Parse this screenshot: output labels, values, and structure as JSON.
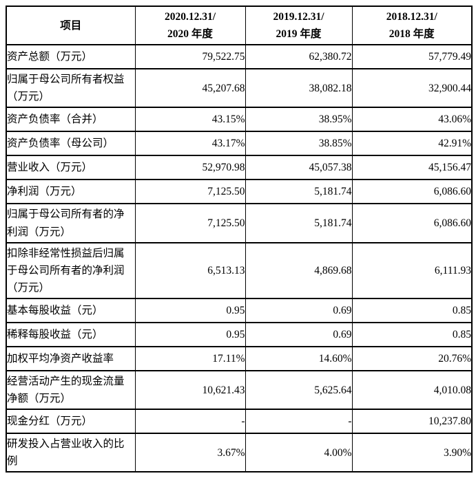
{
  "table": {
    "header": {
      "item_label": "项目",
      "periods": [
        {
          "line1": "2020.12.31/",
          "line2": "2020 年度"
        },
        {
          "line1": "2019.12.31/",
          "line2": "2019 年度"
        },
        {
          "line1": "2018.12.31/",
          "line2": "2018 年度"
        }
      ]
    },
    "rows": [
      {
        "label": "资产总额（万元）",
        "values": [
          "79,522.75",
          "62,380.72",
          "57,779.49"
        ]
      },
      {
        "label": "归属于母公司所有者权益（万元）",
        "values": [
          "45,207.68",
          "38,082.18",
          "32,900.44"
        ]
      },
      {
        "label": "资产负债率（合并）",
        "values": [
          "43.15%",
          "38.95%",
          "43.06%"
        ]
      },
      {
        "label": "资产负债率（母公司）",
        "values": [
          "43.17%",
          "38.85%",
          "42.91%"
        ]
      },
      {
        "label": "营业收入（万元）",
        "values": [
          "52,970.98",
          "45,057.38",
          "45,156.47"
        ]
      },
      {
        "label": "净利润（万元）",
        "values": [
          "7,125.50",
          "5,181.74",
          "6,086.60"
        ]
      },
      {
        "label": "归属于母公司所有者的净利润（万元）",
        "values": [
          "7,125.50",
          "5,181.74",
          "6,086.60"
        ]
      },
      {
        "label": "扣除非经常性损益后归属于母公司所有者的净利润（万元）",
        "values": [
          "6,513.13",
          "4,869.68",
          "6,111.93"
        ]
      },
      {
        "label": "基本每股收益（元）",
        "values": [
          "0.95",
          "0.69",
          "0.85"
        ]
      },
      {
        "label": "稀释每股收益（元）",
        "values": [
          "0.95",
          "0.69",
          "0.85"
        ]
      },
      {
        "label": "加权平均净资产收益率",
        "values": [
          "17.11%",
          "14.60%",
          "20.76%"
        ]
      },
      {
        "label": "经营活动产生的现金流量净额（万元）",
        "values": [
          "10,621.43",
          "5,625.64",
          "4,010.08"
        ]
      },
      {
        "label": "现金分红（万元）",
        "values": [
          "-",
          "-",
          "10,237.80"
        ]
      },
      {
        "label": "研发投入占营业收入的比例",
        "values": [
          "3.67%",
          "4.00%",
          "3.90%"
        ]
      }
    ]
  }
}
